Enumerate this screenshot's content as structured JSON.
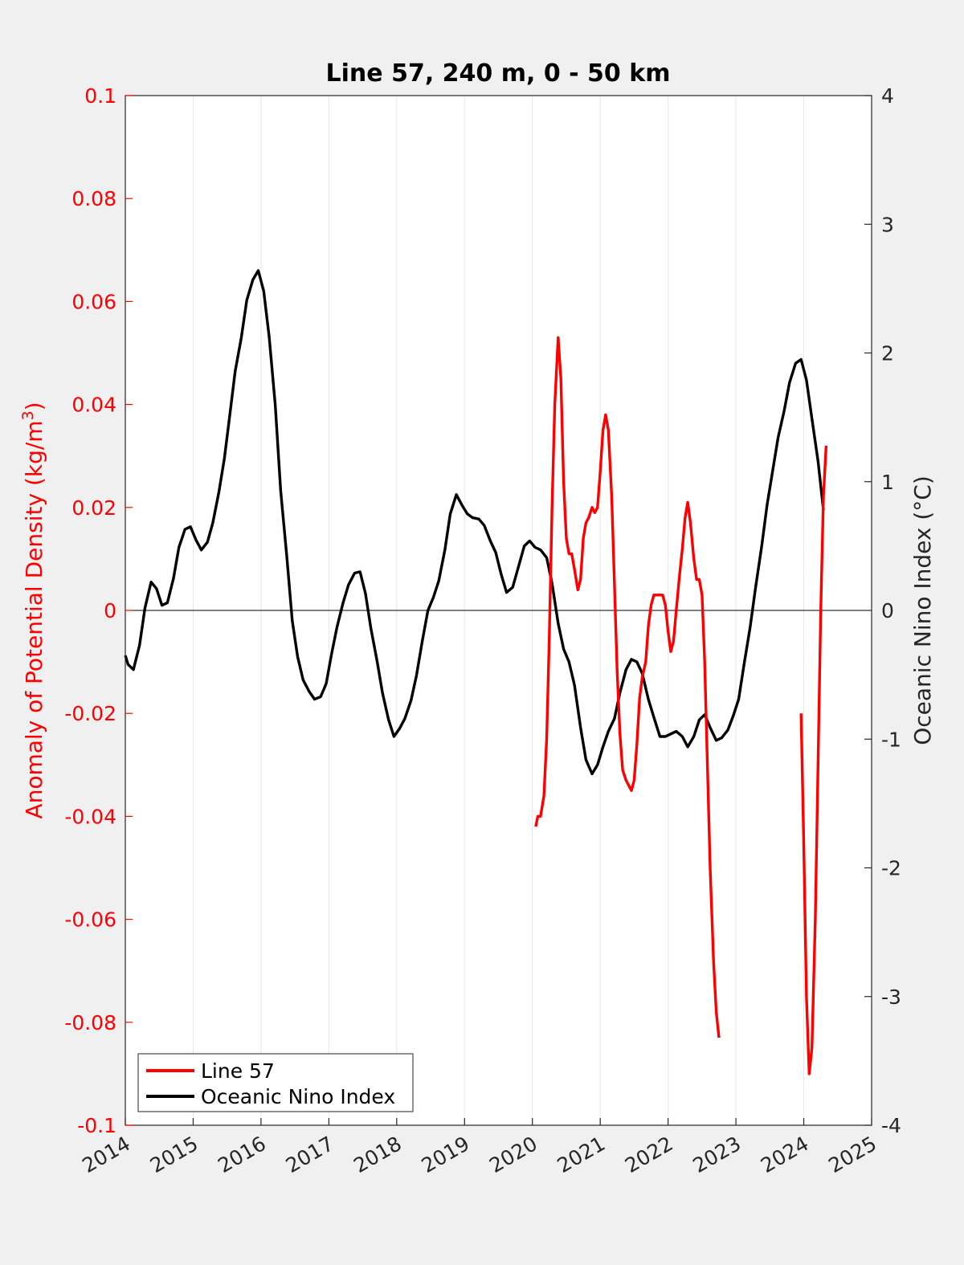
{
  "chart_data": {
    "type": "line",
    "title": "Line 57, 240 m, 0 - 50 km",
    "ylabel_left": "Anomaly of Potential Density (kg/m",
    "ylabel_left_sup": "3",
    "ylabel_left_end": ")",
    "ylabel_right": "Oceanic Nino Index (°C)",
    "xlim": [
      2014,
      2025
    ],
    "ylim_left": [
      -0.1,
      0.1
    ],
    "ylim_right": [
      -4,
      4
    ],
    "x_ticks": [
      "2014",
      "2015",
      "2016",
      "2017",
      "2018",
      "2019",
      "2020",
      "2021",
      "2022",
      "2023",
      "2024",
      "2025"
    ],
    "y_left_ticks": [
      "-0.1",
      "-0.08",
      "-0.06",
      "-0.04",
      "-0.02",
      "0",
      "0.02",
      "0.04",
      "0.06",
      "0.08",
      "0.1"
    ],
    "y_right_ticks": [
      "-4",
      "-3",
      "-2",
      "-1",
      "0",
      "1",
      "2",
      "3",
      "4"
    ],
    "grid": "vertical",
    "legend_location": "bottom-left",
    "colors": {
      "line57": "#ff0000",
      "oni": "#000000",
      "left_axis": "#ff0000"
    },
    "series": [
      {
        "name": "Line 57",
        "axis": "left",
        "segments": [
          [
            [
              2020.05,
              -0.042
            ],
            [
              2020.08,
              -0.04
            ],
            [
              2020.12,
              -0.04
            ],
            [
              2020.17,
              -0.036
            ],
            [
              2020.21,
              -0.025
            ],
            [
              2020.25,
              -0.005
            ],
            [
              2020.29,
              0.02
            ],
            [
              2020.33,
              0.04
            ],
            [
              2020.38,
              0.053
            ],
            [
              2020.42,
              0.045
            ],
            [
              2020.46,
              0.025
            ],
            [
              2020.5,
              0.014
            ],
            [
              2020.54,
              0.011
            ],
            [
              2020.58,
              0.011
            ],
            [
              2020.62,
              0.008
            ],
            [
              2020.67,
              0.004
            ],
            [
              2020.71,
              0.006
            ],
            [
              2020.75,
              0.014
            ],
            [
              2020.79,
              0.017
            ],
            [
              2020.83,
              0.018
            ],
            [
              2020.88,
              0.02
            ],
            [
              2020.92,
              0.019
            ],
            [
              2020.96,
              0.02
            ],
            [
              2021.0,
              0.027
            ],
            [
              2021.04,
              0.035
            ],
            [
              2021.08,
              0.038
            ],
            [
              2021.12,
              0.035
            ],
            [
              2021.17,
              0.022
            ],
            [
              2021.21,
              0.005
            ],
            [
              2021.25,
              -0.012
            ],
            [
              2021.29,
              -0.024
            ],
            [
              2021.33,
              -0.031
            ],
            [
              2021.38,
              -0.033
            ],
            [
              2021.42,
              -0.034
            ],
            [
              2021.46,
              -0.035
            ],
            [
              2021.5,
              -0.033
            ],
            [
              2021.54,
              -0.026
            ],
            [
              2021.58,
              -0.017
            ],
            [
              2021.62,
              -0.013
            ],
            [
              2021.67,
              -0.01
            ],
            [
              2021.71,
              -0.003
            ],
            [
              2021.75,
              0.001
            ],
            [
              2021.79,
              0.003
            ],
            [
              2021.83,
              0.003
            ],
            [
              2021.88,
              0.003
            ],
            [
              2021.92,
              0.003
            ],
            [
              2021.96,
              0.001
            ],
            [
              2022.0,
              -0.004
            ],
            [
              2022.04,
              -0.008
            ],
            [
              2022.08,
              -0.006
            ],
            [
              2022.12,
              0.0
            ],
            [
              2022.17,
              0.007
            ],
            [
              2022.21,
              0.012
            ],
            [
              2022.25,
              0.018
            ],
            [
              2022.29,
              0.021
            ],
            [
              2022.33,
              0.017
            ],
            [
              2022.38,
              0.01
            ],
            [
              2022.42,
              0.006
            ],
            [
              2022.46,
              0.006
            ],
            [
              2022.5,
              0.003
            ],
            [
              2022.54,
              -0.01
            ],
            [
              2022.58,
              -0.03
            ],
            [
              2022.62,
              -0.05
            ],
            [
              2022.67,
              -0.068
            ],
            [
              2022.71,
              -0.078
            ],
            [
              2022.75,
              -0.083
            ]
          ],
          [
            [
              2023.96,
              -0.02
            ],
            [
              2024.0,
              -0.045
            ],
            [
              2024.04,
              -0.075
            ],
            [
              2024.08,
              -0.09
            ],
            [
              2024.12,
              -0.085
            ],
            [
              2024.17,
              -0.06
            ],
            [
              2024.21,
              -0.03
            ],
            [
              2024.25,
              0.0
            ],
            [
              2024.29,
              0.022
            ],
            [
              2024.33,
              0.032
            ]
          ]
        ]
      },
      {
        "name": "Oceanic Nino Index",
        "axis": "right",
        "segments": [
          [
            [
              2014.0,
              -0.35
            ],
            [
              2014.04,
              -0.42
            ],
            [
              2014.12,
              -0.46
            ],
            [
              2014.21,
              -0.27
            ],
            [
              2014.29,
              0.02
            ],
            [
              2014.38,
              0.22
            ],
            [
              2014.46,
              0.17
            ],
            [
              2014.54,
              0.04
            ],
            [
              2014.62,
              0.06
            ],
            [
              2014.71,
              0.25
            ],
            [
              2014.79,
              0.49
            ],
            [
              2014.88,
              0.63
            ],
            [
              2014.96,
              0.65
            ],
            [
              2015.04,
              0.55
            ],
            [
              2015.12,
              0.47
            ],
            [
              2015.21,
              0.53
            ],
            [
              2015.29,
              0.68
            ],
            [
              2015.38,
              0.92
            ],
            [
              2015.46,
              1.18
            ],
            [
              2015.54,
              1.52
            ],
            [
              2015.62,
              1.86
            ],
            [
              2015.71,
              2.12
            ],
            [
              2015.79,
              2.41
            ],
            [
              2015.88,
              2.57
            ],
            [
              2015.96,
              2.64
            ],
            [
              2016.04,
              2.48
            ],
            [
              2016.12,
              2.13
            ],
            [
              2016.21,
              1.6
            ],
            [
              2016.29,
              0.93
            ],
            [
              2016.38,
              0.42
            ],
            [
              2016.46,
              -0.08
            ],
            [
              2016.54,
              -0.36
            ],
            [
              2016.62,
              -0.54
            ],
            [
              2016.71,
              -0.63
            ],
            [
              2016.79,
              -0.69
            ],
            [
              2016.88,
              -0.67
            ],
            [
              2016.96,
              -0.57
            ],
            [
              2017.04,
              -0.34
            ],
            [
              2017.12,
              -0.13
            ],
            [
              2017.21,
              0.06
            ],
            [
              2017.29,
              0.2
            ],
            [
              2017.38,
              0.29
            ],
            [
              2017.46,
              0.3
            ],
            [
              2017.54,
              0.13
            ],
            [
              2017.62,
              -0.14
            ],
            [
              2017.71,
              -0.39
            ],
            [
              2017.79,
              -0.64
            ],
            [
              2017.88,
              -0.85
            ],
            [
              2017.96,
              -0.98
            ],
            [
              2018.04,
              -0.92
            ],
            [
              2018.12,
              -0.84
            ],
            [
              2018.21,
              -0.7
            ],
            [
              2018.29,
              -0.51
            ],
            [
              2018.38,
              -0.23
            ],
            [
              2018.46,
              0.0
            ],
            [
              2018.54,
              0.1
            ],
            [
              2018.62,
              0.23
            ],
            [
              2018.71,
              0.47
            ],
            [
              2018.79,
              0.75
            ],
            [
              2018.88,
              0.9
            ],
            [
              2018.96,
              0.82
            ],
            [
              2019.04,
              0.75
            ],
            [
              2019.12,
              0.72
            ],
            [
              2019.21,
              0.71
            ],
            [
              2019.29,
              0.66
            ],
            [
              2019.38,
              0.54
            ],
            [
              2019.46,
              0.45
            ],
            [
              2019.54,
              0.28
            ],
            [
              2019.62,
              0.14
            ],
            [
              2019.71,
              0.18
            ],
            [
              2019.79,
              0.33
            ],
            [
              2019.88,
              0.5
            ],
            [
              2019.96,
              0.54
            ],
            [
              2020.04,
              0.49
            ],
            [
              2020.12,
              0.47
            ],
            [
              2020.21,
              0.41
            ],
            [
              2020.29,
              0.21
            ],
            [
              2020.38,
              -0.1
            ],
            [
              2020.46,
              -0.3
            ],
            [
              2020.54,
              -0.4
            ],
            [
              2020.62,
              -0.58
            ],
            [
              2020.71,
              -0.91
            ],
            [
              2020.79,
              -1.16
            ],
            [
              2020.88,
              -1.27
            ],
            [
              2020.96,
              -1.2
            ],
            [
              2021.04,
              -1.06
            ],
            [
              2021.12,
              -0.94
            ],
            [
              2021.21,
              -0.84
            ],
            [
              2021.29,
              -0.64
            ],
            [
              2021.38,
              -0.46
            ],
            [
              2021.46,
              -0.38
            ],
            [
              2021.54,
              -0.4
            ],
            [
              2021.62,
              -0.49
            ],
            [
              2021.71,
              -0.69
            ],
            [
              2021.79,
              -0.83
            ],
            [
              2021.88,
              -0.98
            ],
            [
              2021.96,
              -0.98
            ],
            [
              2022.04,
              -0.96
            ],
            [
              2022.12,
              -0.94
            ],
            [
              2022.21,
              -0.98
            ],
            [
              2022.29,
              -1.06
            ],
            [
              2022.38,
              -0.98
            ],
            [
              2022.46,
              -0.85
            ],
            [
              2022.54,
              -0.81
            ],
            [
              2022.62,
              -0.91
            ],
            [
              2022.71,
              -1.01
            ],
            [
              2022.79,
              -0.99
            ],
            [
              2022.88,
              -0.93
            ],
            [
              2022.96,
              -0.82
            ],
            [
              2023.04,
              -0.69
            ],
            [
              2023.12,
              -0.42
            ],
            [
              2023.21,
              -0.13
            ],
            [
              2023.29,
              0.18
            ],
            [
              2023.38,
              0.5
            ],
            [
              2023.46,
              0.82
            ],
            [
              2023.54,
              1.08
            ],
            [
              2023.62,
              1.34
            ],
            [
              2023.71,
              1.55
            ],
            [
              2023.79,
              1.77
            ],
            [
              2023.88,
              1.92
            ],
            [
              2023.96,
              1.95
            ],
            [
              2024.04,
              1.79
            ],
            [
              2024.12,
              1.49
            ],
            [
              2024.21,
              1.16
            ],
            [
              2024.29,
              0.78
            ]
          ]
        ]
      }
    ]
  }
}
